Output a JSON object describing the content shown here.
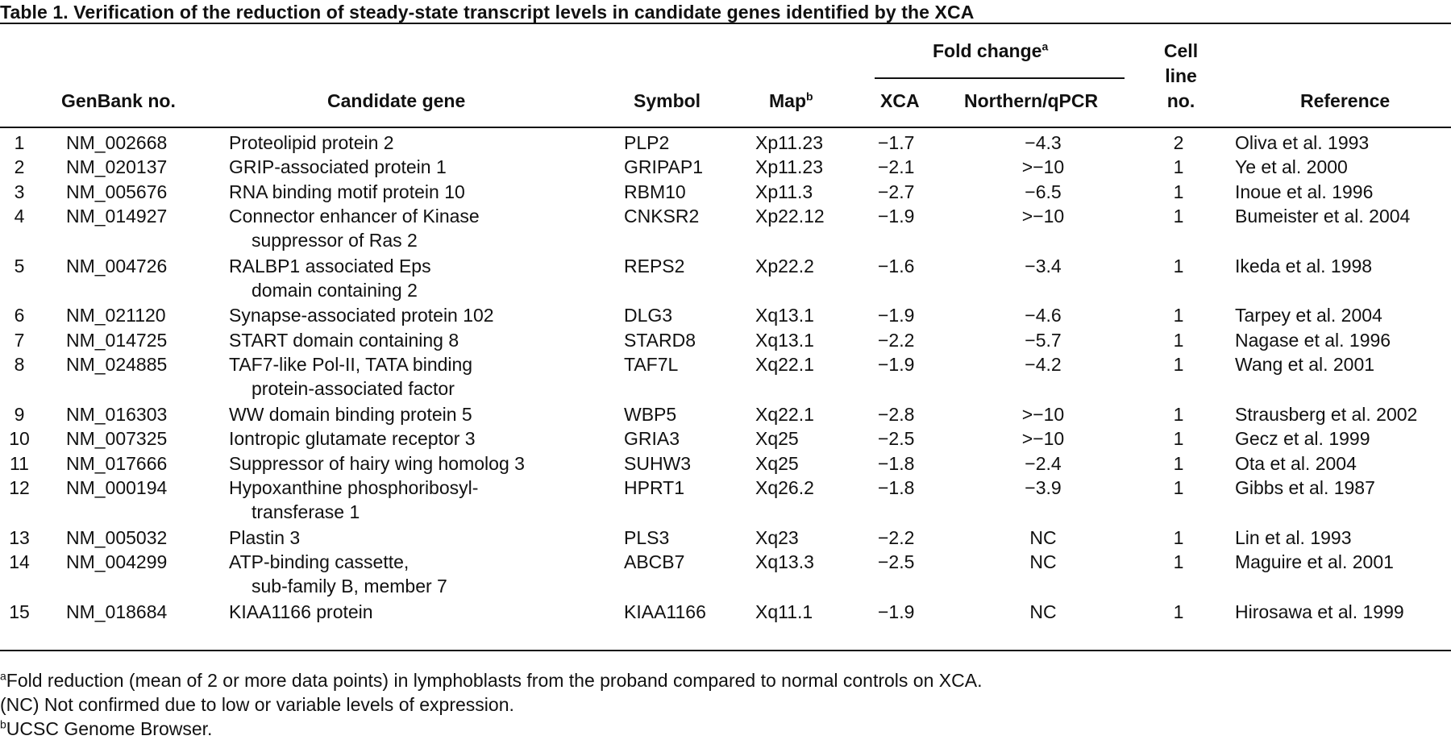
{
  "table": {
    "title": "Table 1.   Verification of the reduction of steady-state transcript levels in candidate genes identified by the XCA",
    "headers": {
      "genbank": "GenBank no.",
      "gene": "Candidate gene",
      "symbol": "Symbol",
      "map": "Map",
      "map_sup": "b",
      "fold_change": "Fold change",
      "fold_change_sup": "a",
      "xca": "XCA",
      "northern": "Northern/qPCR",
      "cell_line_1": "Cell",
      "cell_line_2": "line",
      "cell_line_3": "no.",
      "reference": "Reference"
    },
    "rows": [
      {
        "num": "1",
        "genbank": "NM_002668",
        "gene": [
          "Proteolipid protein 2"
        ],
        "symbol": "PLP2",
        "map": "Xp11.23",
        "xca": "−1.7",
        "northern": "−4.3",
        "cell": "2",
        "ref": "Oliva et al. 1993"
      },
      {
        "num": "2",
        "genbank": "NM_020137",
        "gene": [
          "GRIP-associated protein 1"
        ],
        "symbol": "GRIPAP1",
        "map": "Xp11.23",
        "xca": "−2.1",
        "northern": ">−10",
        "cell": "1",
        "ref": "Ye et al. 2000"
      },
      {
        "num": "3",
        "genbank": "NM_005676",
        "gene": [
          "RNA binding motif protein 10"
        ],
        "symbol": "RBM10",
        "map": "Xp11.3",
        "xca": "−2.7",
        "northern": "−6.5",
        "cell": "1",
        "ref": "Inoue et al. 1996"
      },
      {
        "num": "4",
        "genbank": "NM_014927",
        "gene": [
          "Connector enhancer of Kinase",
          "suppressor of Ras 2"
        ],
        "symbol": "CNKSR2",
        "map": "Xp22.12",
        "xca": "−1.9",
        "northern": ">−10",
        "cell": "1",
        "ref": "Bumeister et al. 2004"
      },
      {
        "num": "5",
        "genbank": "NM_004726",
        "gene": [
          "RALBP1 associated Eps",
          "domain containing 2"
        ],
        "symbol": "REPS2",
        "map": "Xp22.2",
        "xca": "−1.6",
        "northern": "−3.4",
        "cell": "1",
        "ref": "Ikeda et al. 1998"
      },
      {
        "num": "6",
        "genbank": "NM_021120",
        "gene": [
          "Synapse-associated protein 102"
        ],
        "symbol": "DLG3",
        "map": "Xq13.1",
        "xca": "−1.9",
        "northern": "−4.6",
        "cell": "1",
        "ref": "Tarpey et al. 2004"
      },
      {
        "num": "7",
        "genbank": "NM_014725",
        "gene": [
          "START domain containing 8"
        ],
        "symbol": "STARD8",
        "map": "Xq13.1",
        "xca": "−2.2",
        "northern": "−5.7",
        "cell": "1",
        "ref": "Nagase et al. 1996"
      },
      {
        "num": "8",
        "genbank": "NM_024885",
        "gene": [
          "TAF7-like Pol-II, TATA binding",
          "protein-associated factor"
        ],
        "symbol": "TAF7L",
        "map": "Xq22.1",
        "xca": "−1.9",
        "northern": "−4.2",
        "cell": "1",
        "ref": "Wang et al. 2001"
      },
      {
        "num": "9",
        "genbank": "NM_016303",
        "gene": [
          "WW domain binding protein 5"
        ],
        "symbol": "WBP5",
        "map": "Xq22.1",
        "xca": "−2.8",
        "northern": ">−10",
        "cell": "1",
        "ref": "Strausberg et al. 2002"
      },
      {
        "num": "10",
        "genbank": "NM_007325",
        "gene": [
          "Iontropic glutamate receptor 3"
        ],
        "symbol": "GRIA3",
        "map": "Xq25",
        "xca": "−2.5",
        "northern": ">−10",
        "cell": "1",
        "ref": "Gecz et al. 1999"
      },
      {
        "num": "11",
        "genbank": "NM_017666",
        "gene": [
          "Suppressor of hairy wing homolog 3"
        ],
        "symbol": "SUHW3",
        "map": "Xq25",
        "xca": "−1.8",
        "northern": "−2.4",
        "cell": "1",
        "ref": "Ota et al. 2004"
      },
      {
        "num": "12",
        "genbank": "NM_000194",
        "gene": [
          "Hypoxanthine phosphoribosyl-",
          "transferase 1"
        ],
        "symbol": "HPRT1",
        "map": "Xq26.2",
        "xca": "−1.8",
        "northern": "−3.9",
        "cell": "1",
        "ref": "Gibbs et al. 1987"
      },
      {
        "num": "13",
        "genbank": "NM_005032",
        "gene": [
          "Plastin 3"
        ],
        "symbol": "PLS3",
        "map": "Xq23",
        "xca": "−2.2",
        "northern": "NC",
        "cell": "1",
        "ref": "Lin et al. 1993"
      },
      {
        "num": "14",
        "genbank": "NM_004299",
        "gene": [
          "ATP-binding cassette,",
          "sub-family B, member 7"
        ],
        "symbol": "ABCB7",
        "map": "Xq13.3",
        "xca": "−2.5",
        "northern": "NC",
        "cell": "1",
        "ref": "Maguire et al. 2001"
      },
      {
        "num": "15",
        "genbank": "NM_018684",
        "gene": [
          "KIAA1166 protein"
        ],
        "symbol": "KIAA1166",
        "map": "Xq11.1",
        "xca": "−1.9",
        "northern": "NC",
        "cell": "1",
        "ref": "Hirosawa et al. 1999"
      }
    ],
    "footnotes": [
      {
        "sup": "a",
        "text": "Fold reduction (mean of 2 or more data points) in lymphoblasts from the proband compared to normal controls on XCA."
      },
      {
        "sup": "",
        "text": "(NC) Not confirmed due to low or variable levels of expression."
      },
      {
        "sup": "b",
        "text": "UCSC Genome Browser."
      }
    ]
  }
}
